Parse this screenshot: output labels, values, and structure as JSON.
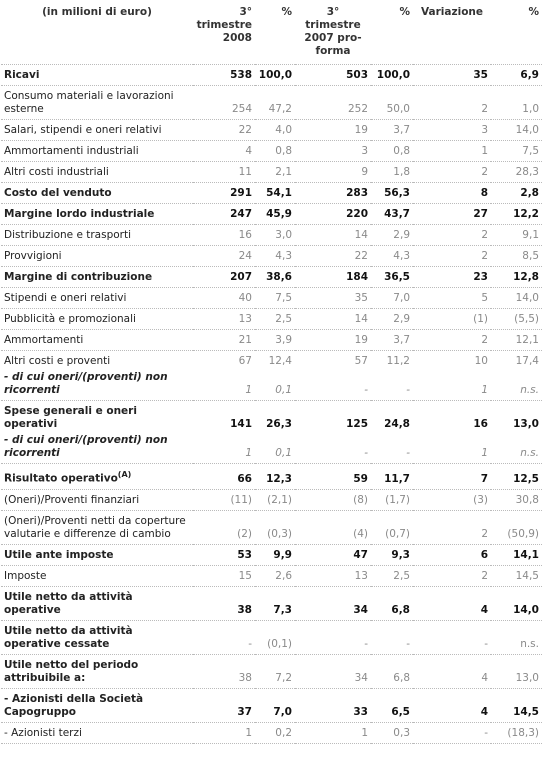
{
  "table": {
    "header": [
      "(in milioni di euro)",
      "3° trimestre 2008",
      "%",
      "3° trimestre 2007 pro-forma",
      "%",
      "Variazione",
      "%"
    ],
    "rows": [
      {
        "label": "Ricavi",
        "values": [
          "538",
          "100,0",
          "503",
          "100,0",
          "35",
          "6,9"
        ]
      },
      {
        "label": "Consumo materiali e lavorazioni esterne",
        "values": [
          "254",
          "47,2",
          "252",
          "50,0",
          "2",
          "1,0"
        ]
      },
      {
        "label": "Salari, stipendi e oneri relativi",
        "values": [
          "22",
          "4,0",
          "19",
          "3,7",
          "3",
          "14,0"
        ]
      },
      {
        "label": "Ammortamenti industriali",
        "values": [
          "4",
          "0,8",
          "3",
          "0,8",
          "1",
          "7,5"
        ]
      },
      {
        "label": "Altri costi industriali",
        "values": [
          "11",
          "2,1",
          "9",
          "1,8",
          "2",
          "28,3"
        ]
      },
      {
        "label": "Costo del venduto",
        "values": [
          "291",
          "54,1",
          "283",
          "56,3",
          "8",
          "2,8"
        ]
      },
      {
        "label": "Margine lordo industriale",
        "values": [
          "247",
          "45,9",
          "220",
          "43,7",
          "27",
          "12,2"
        ]
      },
      {
        "label": "Distribuzione e trasporti",
        "values": [
          "16",
          "3,0",
          "14",
          "2,9",
          "2",
          "9,1"
        ]
      },
      {
        "label": "Provvigioni",
        "values": [
          "24",
          "4,3",
          "22",
          "4,3",
          "2",
          "8,5"
        ]
      },
      {
        "label": "Margine di contribuzione",
        "values": [
          "207",
          "38,6",
          "184",
          "36,5",
          "23",
          "12,8"
        ]
      },
      {
        "label": "Stipendi e oneri relativi",
        "values": [
          "40",
          "7,5",
          "35",
          "7,0",
          "5",
          "14,0"
        ]
      },
      {
        "label": "Pubblicità e promozionali",
        "values": [
          "13",
          "2,5",
          "14",
          "2,9",
          "(1)",
          "(5,5)"
        ]
      },
      {
        "label": "Ammortamenti",
        "values": [
          "21",
          "3,9",
          "19",
          "3,7",
          "2",
          "12,1"
        ]
      },
      {
        "label": "Altri costi e proventi",
        "values": [
          "67",
          "12,4",
          "57",
          "11,2",
          "10",
          "17,4"
        ],
        "sub": {
          "label": "- di cui oneri/(proventi) non ricorrenti",
          "values": [
            "1",
            "0,1",
            "-",
            "-",
            "1",
            "n.s."
          ]
        }
      },
      {
        "label": "Spese generali e oneri operativi",
        "values": [
          "141",
          "26,3",
          "125",
          "24,8",
          "16",
          "13,0"
        ],
        "sub": {
          "label": "- di cui oneri/(proventi) non ricorrenti",
          "values": [
            "1",
            "0,1",
            "-",
            "-",
            "1",
            "n.s."
          ]
        }
      },
      {
        "label": "Risultato operativo",
        "sup": "(A)",
        "values": [
          "66",
          "12,3",
          "59",
          "11,7",
          "7",
          "12,5"
        ]
      },
      {
        "label": "(Oneri)/Proventi finanziari",
        "values": [
          "(11)",
          "(2,1)",
          "(8)",
          "(1,7)",
          "(3)",
          "30,8"
        ]
      },
      {
        "label": "(Oneri)/Proventi netti da coperture valutarie e differenze di cambio",
        "values": [
          "(2)",
          "(0,3)",
          "(4)",
          "(0,7)",
          "2",
          "(50,9)"
        ]
      },
      {
        "label": "Utile ante imposte",
        "values": [
          "53",
          "9,9",
          "47",
          "9,3",
          "6",
          "14,1"
        ]
      },
      {
        "label": "Imposte",
        "values": [
          "15",
          "2,6",
          "13",
          "2,5",
          "2",
          "14,5"
        ]
      },
      {
        "label": "Utile netto da attività operative",
        "values": [
          "38",
          "7,3",
          "34",
          "6,8",
          "4",
          "14,0"
        ]
      },
      {
        "label": "Utile netto da attività operative cessate",
        "values": [
          "-",
          "(0,1)",
          "-",
          "-",
          "-",
          "n.s."
        ]
      },
      {
        "label": "Utile netto del periodo attribuibile a:",
        "values": [
          "38",
          "7,2",
          "34",
          "6,8",
          "4",
          "13,0"
        ]
      },
      {
        "label": "- Azionisti della Società Capogruppo",
        "values": [
          "37",
          "7,0",
          "33",
          "6,5",
          "4",
          "14,5"
        ]
      },
      {
        "label": "- Azionisti terzi",
        "values": [
          "1",
          "0,2",
          "1",
          "0,3",
          "-",
          "(18,3)"
        ]
      }
    ]
  }
}
